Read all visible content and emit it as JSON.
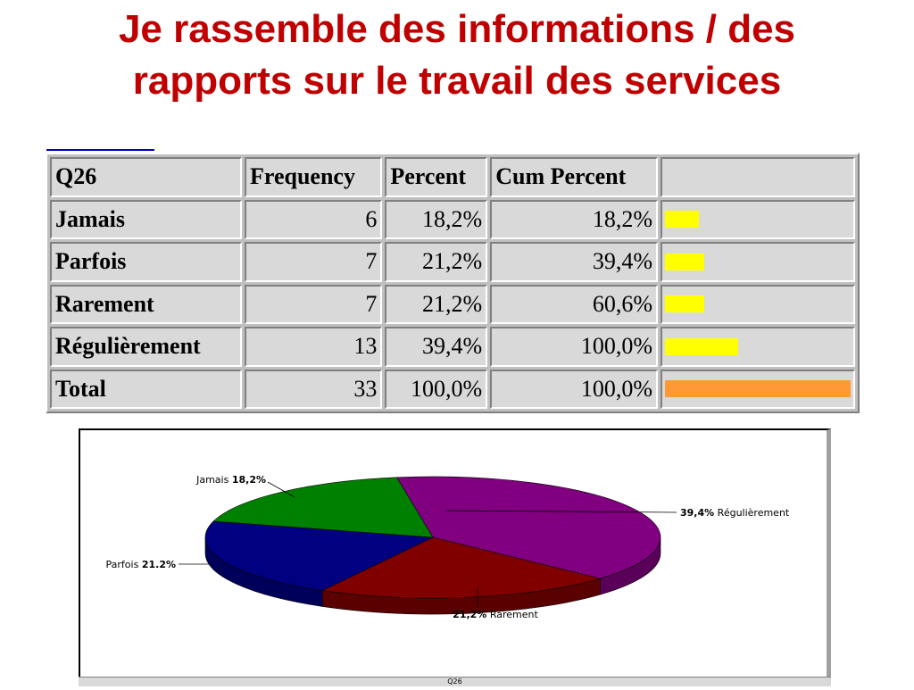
{
  "slide": {
    "title_line1": "Je rassemble des informations / des",
    "title_line2": "rapports sur le travail des services"
  },
  "table": {
    "headers": [
      "Q26",
      "Frequency",
      "Percent",
      "Cum Percent",
      ""
    ],
    "rows": [
      {
        "label": "Jamais",
        "frequency": "6",
        "percent": "18,2%",
        "cum_percent": "18,2%",
        "bar_fraction": 0.182
      },
      {
        "label": "Parfois",
        "frequency": "7",
        "percent": "21,2%",
        "cum_percent": "39,4%",
        "bar_fraction": 0.212
      },
      {
        "label": "Rarement",
        "frequency": "7",
        "percent": "21,2%",
        "cum_percent": "60,6%",
        "bar_fraction": 0.212
      },
      {
        "label": "Régulièrement",
        "frequency": "13",
        "percent": "39,4%",
        "cum_percent": "100,0%",
        "bar_fraction": 0.394
      },
      {
        "label": "Total",
        "frequency": "33",
        "percent": "100,0%",
        "cum_percent": "100,0%",
        "bar_fraction": 1.0
      }
    ],
    "colors": {
      "bar": "#ffff00",
      "total_bar": "#ff9933"
    }
  },
  "chart_data": {
    "type": "pie",
    "caption": "Q26",
    "slices": [
      {
        "label": "Régulièrement",
        "value": 39.4,
        "display": "39,4%",
        "color": "#800080"
      },
      {
        "label": "Rarement",
        "value": 21.2,
        "display": "21,2%",
        "color": "#800000"
      },
      {
        "label": "Parfois",
        "value": 21.2,
        "display": "21.2%",
        "color": "#000080"
      },
      {
        "label": "Jamais",
        "value": 18.2,
        "display": "18,2%",
        "color": "#008000"
      }
    ]
  }
}
